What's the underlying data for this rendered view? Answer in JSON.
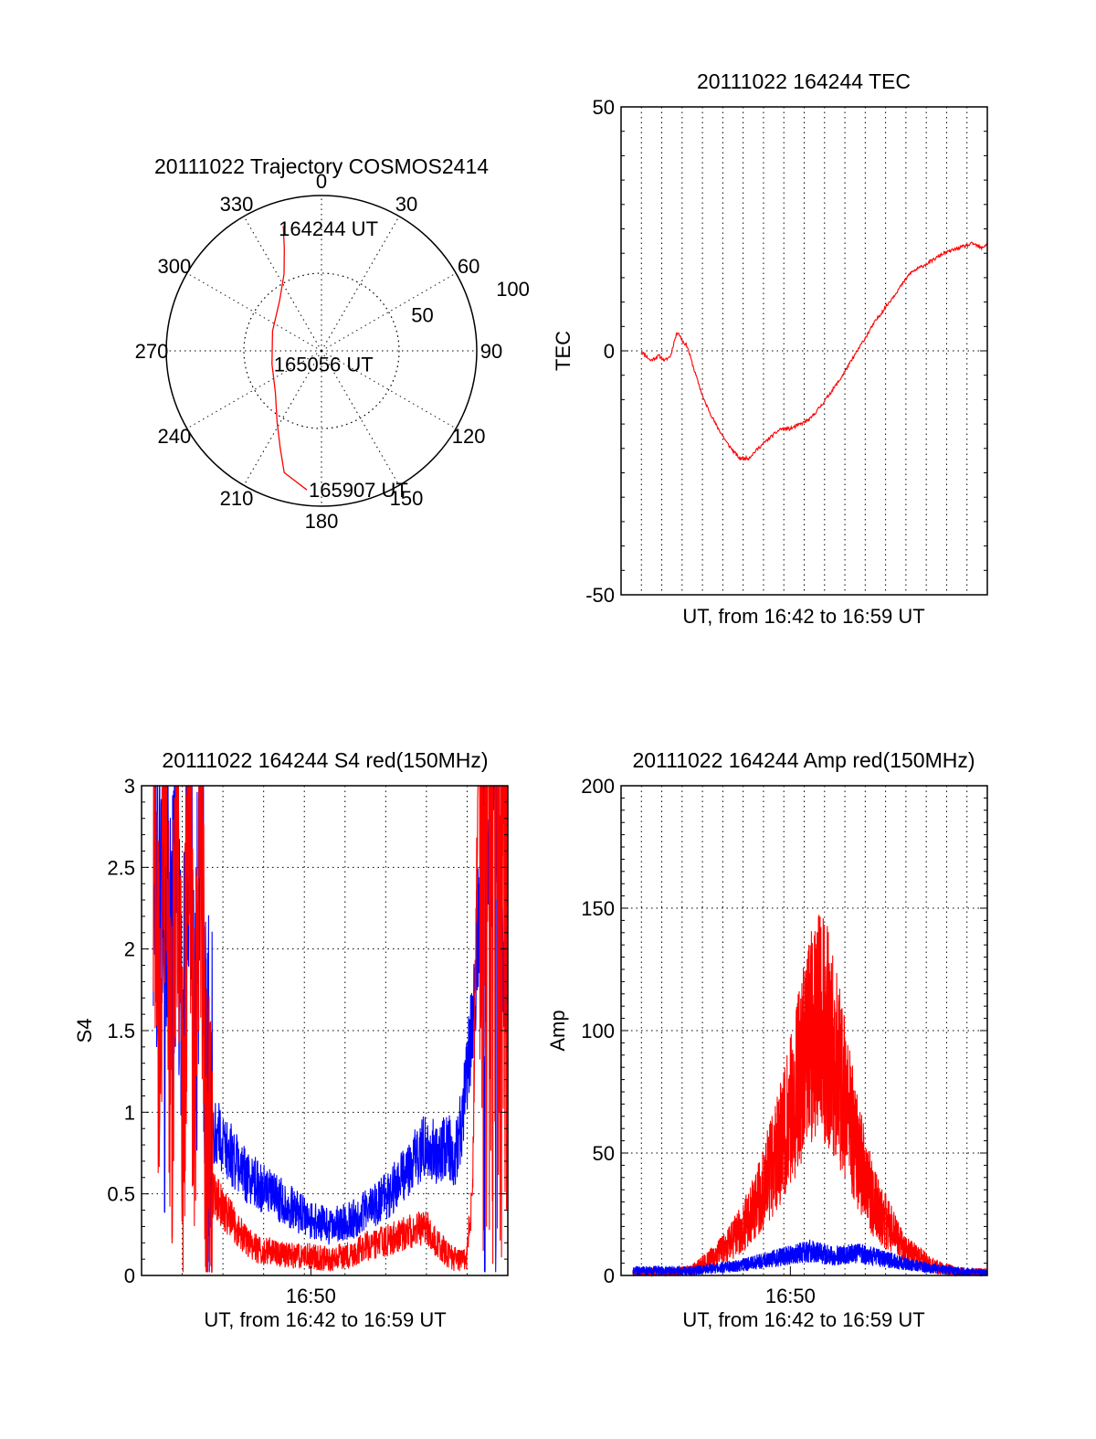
{
  "chart_data": [
    {
      "type": "polar",
      "title": "20111022 Trajectory COSMOS2414",
      "angle_labels": [
        "0",
        "30",
        "60",
        "90",
        "120",
        "150",
        "180",
        "210",
        "240",
        "270",
        "300",
        "330"
      ],
      "angles": [
        0,
        30,
        60,
        90,
        120,
        150,
        180,
        210,
        240,
        270,
        300,
        330
      ],
      "radial_labels": [
        "50",
        "100"
      ],
      "radial_values": [
        50,
        100
      ],
      "rmax": 100,
      "grid": true,
      "series": [
        {
          "color": "#ff0000",
          "points": [
            {
              "az": 343,
              "r": 84
            },
            {
              "az": 340,
              "r": 70
            },
            {
              "az": 334,
              "r": 55
            },
            {
              "az": 320,
              "r": 42
            },
            {
              "az": 292,
              "r": 34
            },
            {
              "az": 255,
              "r": 33
            },
            {
              "az": 228,
              "r": 40
            },
            {
              "az": 212,
              "r": 54
            },
            {
              "az": 203,
              "r": 68
            },
            {
              "az": 197,
              "r": 82
            },
            {
              "az": 186,
              "r": 90
            }
          ]
        }
      ],
      "annotations": [
        {
          "text": "164244 UT",
          "az": 340,
          "r": 84
        },
        {
          "text": "165056 UT",
          "az": 255,
          "r": 33
        },
        {
          "text": "165907 UT",
          "az": 186,
          "r": 90
        }
      ]
    },
    {
      "type": "line",
      "title": "20111022 164244 TEC",
      "xlabel": "UT, from 16:42 to 16:59 UT",
      "ylabel": "TEC",
      "xlim": [
        16.69,
        17.0
      ],
      "ylim": [
        -50,
        50
      ],
      "yticks": [
        -50,
        0,
        50
      ],
      "ytick_labels": [
        "-50",
        "0",
        "50"
      ],
      "xticks": [],
      "xtick_labels": [],
      "grid": true,
      "series": [
        {
          "color": "#ff0000",
          "x": [
            16.707,
            16.715,
            16.722,
            16.727,
            16.732,
            16.735,
            16.738,
            16.742,
            16.746,
            16.752,
            16.76,
            16.77,
            16.78,
            16.79,
            16.798,
            16.806,
            16.815,
            16.825,
            16.833,
            16.842,
            16.85,
            16.86,
            16.875,
            16.89,
            16.905,
            16.92,
            16.935,
            16.95,
            16.963,
            16.975,
            16.988,
            16.995,
            17.0
          ],
          "y": [
            0,
            -2,
            -1,
            -2,
            -1,
            2,
            4,
            2,
            1,
            -4,
            -10,
            -15,
            -19,
            -22,
            -22,
            -20,
            -18,
            -16,
            -16,
            -15,
            -14,
            -11,
            -6,
            0,
            6,
            11,
            16,
            18,
            20,
            21,
            22,
            21,
            22
          ]
        }
      ]
    },
    {
      "type": "line",
      "title": "20111022 164244 S4 red(150MHz)",
      "xlabel": "UT, from 16:42 to 16:59 UT",
      "ylabel": "S4",
      "xlim": [
        16.69,
        17.0
      ],
      "ylim": [
        0,
        3
      ],
      "yticks": [
        0,
        0.5,
        1,
        1.5,
        2,
        2.5,
        3
      ],
      "ytick_labels": [
        "0",
        "0.5",
        "1",
        "1.5",
        "2",
        "2.5",
        "3"
      ],
      "xticks": [
        16.8333
      ],
      "xtick_labels": [
        "16:50"
      ],
      "grid": true,
      "series": [
        {
          "color": "#0000ff",
          "x": [
            16.7,
            16.705,
            16.71,
            16.715,
            16.72,
            16.725,
            16.73,
            16.735,
            16.74,
            16.745,
            16.75,
            16.76,
            16.77,
            16.78,
            16.79,
            16.8,
            16.81,
            16.82,
            16.83,
            16.84,
            16.85,
            16.86,
            16.87,
            16.88,
            16.89,
            16.9,
            16.91,
            16.92,
            16.93,
            16.94,
            16.95,
            16.955,
            16.96,
            16.965,
            16.97,
            16.975,
            16.98,
            16.985,
            16.99,
            16.995,
            17.0
          ],
          "y": [
            3,
            2.2,
            3,
            1.5,
            3,
            1.2,
            3,
            1.3,
            3,
            1.1,
            0.9,
            0.8,
            0.7,
            0.6,
            0.55,
            0.5,
            0.45,
            0.4,
            0.35,
            0.32,
            0.3,
            0.32,
            0.35,
            0.4,
            0.45,
            0.5,
            0.6,
            0.7,
            0.8,
            0.75,
            0.8,
            0.7,
            0.9,
            1.2,
            1.5,
            2.2,
            3,
            2.5,
            3,
            2.0,
            1.8
          ]
        },
        {
          "color": "#ff0000",
          "x": [
            16.7,
            16.705,
            16.71,
            16.715,
            16.72,
            16.725,
            16.73,
            16.735,
            16.74,
            16.745,
            16.75,
            16.76,
            16.77,
            16.78,
            16.79,
            16.8,
            16.81,
            16.82,
            16.83,
            16.84,
            16.85,
            16.86,
            16.87,
            16.88,
            16.89,
            16.9,
            16.91,
            16.92,
            16.93,
            16.94,
            16.95,
            16.955,
            16.96,
            16.965,
            16.97,
            16.975,
            16.98,
            16.985,
            16.99,
            16.995,
            17.0
          ],
          "y": [
            3,
            1.5,
            3,
            0.9,
            3,
            0.8,
            3,
            0.9,
            3,
            0.7,
            0.5,
            0.4,
            0.3,
            0.2,
            0.15,
            0.15,
            0.13,
            0.12,
            0.12,
            0.11,
            0.1,
            0.12,
            0.14,
            0.18,
            0.2,
            0.22,
            0.25,
            0.28,
            0.3,
            0.2,
            0.12,
            0.1,
            0.08,
            0.1,
            0.5,
            3,
            3,
            3,
            3,
            3,
            3
          ]
        }
      ]
    },
    {
      "type": "line",
      "title": "20111022 164244 Amp red(150MHz)",
      "xlabel": "UT, from 16:42 to 16:59 UT",
      "ylabel": "Amp",
      "xlim": [
        16.69,
        17.0
      ],
      "ylim": [
        0,
        200
      ],
      "yticks": [
        0,
        50,
        100,
        150,
        200
      ],
      "ytick_labels": [
        "0",
        "50",
        "100",
        "150",
        "200"
      ],
      "xticks": [
        16.8333
      ],
      "xtick_labels": [
        "16:50"
      ],
      "grid": true,
      "series": [
        {
          "color": "#ff0000",
          "x": [
            16.7,
            16.73,
            16.75,
            16.76,
            16.77,
            16.78,
            16.79,
            16.8,
            16.81,
            16.82,
            16.83,
            16.84,
            16.85,
            16.86,
            16.87,
            16.88,
            16.89,
            16.9,
            16.91,
            16.92,
            16.93,
            16.94,
            16.95,
            16.96,
            16.97,
            16.98,
            16.99,
            17.0
          ],
          "y": [
            1,
            1,
            2,
            5,
            8,
            12,
            18,
            25,
            35,
            48,
            60,
            80,
            95,
            105,
            90,
            70,
            50,
            35,
            25,
            18,
            10,
            8,
            5,
            3,
            2,
            1,
            1,
            1
          ]
        },
        {
          "color": "#0000ff",
          "x": [
            16.7,
            16.73,
            16.75,
            16.77,
            16.79,
            16.81,
            16.83,
            16.85,
            16.87,
            16.89,
            16.91,
            16.93,
            16.95,
            16.97,
            17.0
          ],
          "y": [
            2,
            2,
            2,
            3,
            4,
            6,
            8,
            10,
            8,
            9,
            7,
            5,
            3,
            2,
            1
          ]
        }
      ]
    }
  ]
}
